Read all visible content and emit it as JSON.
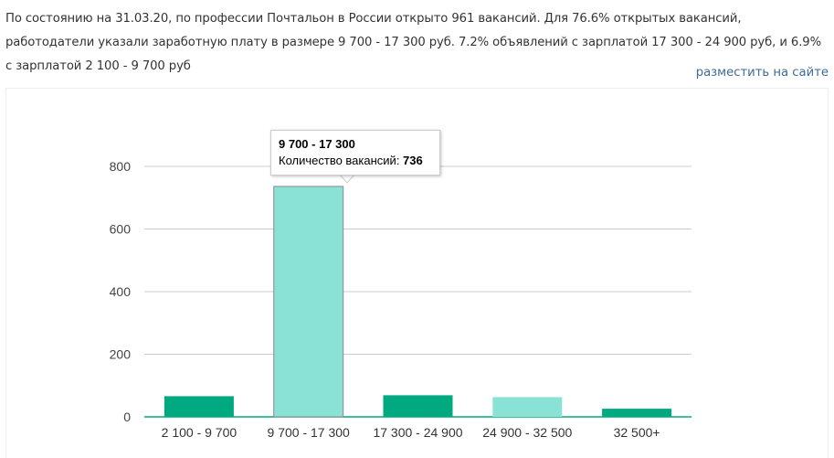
{
  "summary": {
    "text": "По состоянию на 31.03.20, по профессии Почтальон в России открыто 961 вакансий. Для 76.6% открытых вакансий, работодатели указали заработную плату в размере 9 700 - 17 300 руб. 7.2% объявлений с зарплатой 17 300 - 24 900 руб, и 6.9% с зарплатой 2 100 - 9 700 руб"
  },
  "place_link": {
    "label": "разместить на сайте"
  },
  "tooltip": {
    "title": "9 700 - 17 300",
    "label": "Количество вакансий: ",
    "value": "736"
  },
  "colors": {
    "bar_default": "#00a97f",
    "bar_light": "#8ae2d6",
    "link": "#3d6b99",
    "grid": "#cccccc"
  },
  "chart_data": {
    "type": "bar",
    "categories": [
      "2 100 - 9 700",
      "9 700 - 17 300",
      "17 300 - 24 900",
      "24 900 - 32 500",
      "32 500+"
    ],
    "values": [
      66,
      736,
      69,
      63,
      26
    ],
    "bar_colors": [
      "#00a97f",
      "#8ae2d6",
      "#00a97f",
      "#8ae2d6",
      "#00a97f"
    ],
    "highlighted_index": 1,
    "ylim": [
      0,
      800
    ],
    "yticks": [
      0,
      200,
      400,
      600,
      800
    ],
    "grid": true,
    "legend": "none",
    "title": "",
    "xlabel": "",
    "ylabel": ""
  }
}
